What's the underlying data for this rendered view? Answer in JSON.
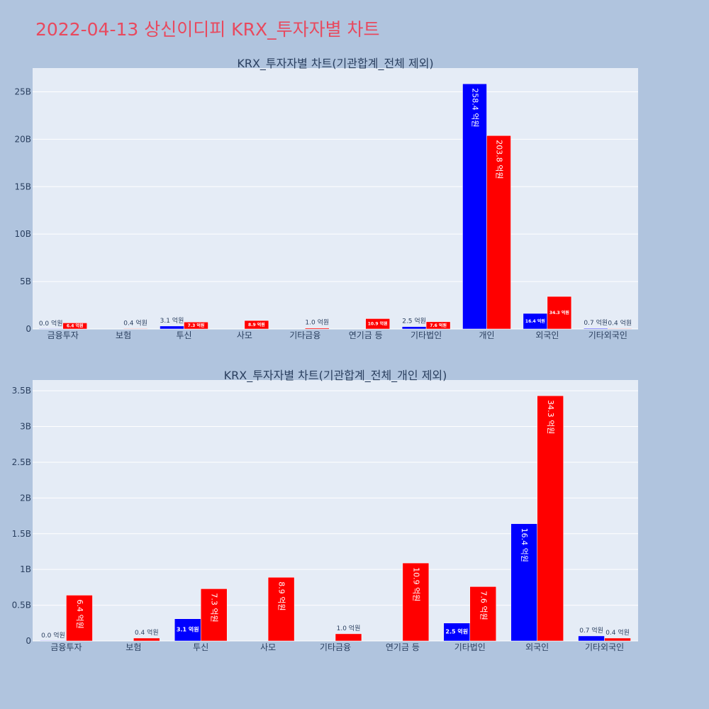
{
  "page": {
    "title": "2022-04-13 상신이디피 KRX_투자자별 차트"
  },
  "colors": {
    "series_a": "#0000ff",
    "series_b": "#ff0000",
    "title": "#e8495e"
  },
  "chart_data": [
    {
      "type": "bar",
      "title": "KRX_투자자별 차트(기관합계_전체 제외)",
      "categories": [
        "금융투자",
        "보험",
        "투신",
        "사모",
        "기타금융",
        "연기금 등",
        "기타법인",
        "개인",
        "외국인",
        "기타외국인"
      ],
      "ylim": [
        0,
        27500000000
      ],
      "yticks": [
        0,
        5000000000,
        10000000000,
        15000000000,
        20000000000,
        25000000000
      ],
      "ytick_labels": [
        "0",
        "5B",
        "10B",
        "15B",
        "20B",
        "25B"
      ],
      "grid": true,
      "series": [
        {
          "values": [
            0,
            null,
            310000000,
            null,
            null,
            null,
            250000000,
            25840000000,
            1640000000,
            70000000
          ],
          "labels": [
            "0.0 억원",
            "",
            "3.1 억원",
            "",
            "",
            "",
            "2.5 억원",
            "258.4 억원",
            "16.4 억원",
            "0.7 억원"
          ]
        },
        {
          "values": [
            640000000,
            40000000,
            730000000,
            890000000,
            100000000,
            1090000000,
            760000000,
            20380000000,
            3430000000,
            40000000
          ],
          "labels": [
            "6.4 억원",
            "0.4 억원",
            "7.3 억원",
            "8.9 억원",
            "1.0 억원",
            "10.9 억원",
            "7.6 억원",
            "203.8 억원",
            "34.3 억원",
            "0.4 억원"
          ]
        }
      ]
    },
    {
      "type": "bar",
      "title": "KRX_투자자별 차트(기관합계_전체_개인 제외)",
      "categories": [
        "금융투자",
        "보험",
        "투신",
        "사모",
        "기타금융",
        "연기금 등",
        "기타법인",
        "외국인",
        "기타외국인"
      ],
      "ylim": [
        0,
        3650000000
      ],
      "yticks": [
        0,
        500000000,
        1000000000,
        1500000000,
        2000000000,
        2500000000,
        3000000000,
        3500000000
      ],
      "ytick_labels": [
        "0",
        "0.5B",
        "1B",
        "1.5B",
        "2B",
        "2.5B",
        "3B",
        "3.5B"
      ],
      "grid": true,
      "series": [
        {
          "values": [
            0,
            null,
            310000000,
            null,
            null,
            null,
            250000000,
            1640000000,
            70000000
          ],
          "labels": [
            "0.0 억원",
            "",
            "3.1 억원",
            "",
            "",
            "",
            "2.5 억원",
            "16.4 억원",
            "0.7 억원"
          ]
        },
        {
          "values": [
            640000000,
            40000000,
            730000000,
            890000000,
            100000000,
            1090000000,
            760000000,
            3430000000,
            40000000
          ],
          "labels": [
            "6.4 억원",
            "0.4 억원",
            "7.3 억원",
            "8.9 억원",
            "1.0 억원",
            "10.9 억원",
            "7.6 억원",
            "34.3 억원",
            "0.4 억원"
          ]
        }
      ]
    }
  ]
}
